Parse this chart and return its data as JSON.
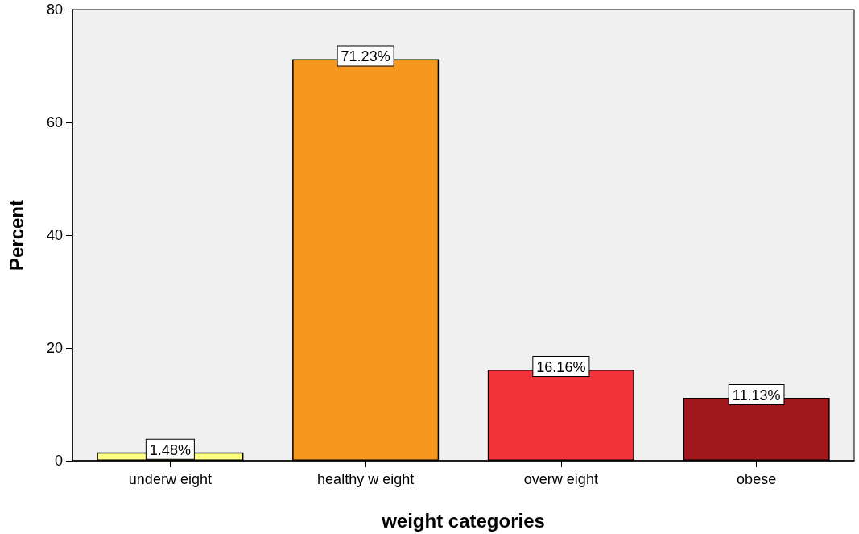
{
  "chart_data": {
    "type": "bar",
    "xlabel": "weight categories",
    "ylabel": "Percent",
    "categories": [
      "underw eight",
      "healthy w eight",
      "overw eight",
      "obese"
    ],
    "values": [
      1.48,
      71.23,
      16.16,
      11.13
    ],
    "colors": [
      "#ffff80",
      "#f7971e",
      "#f2343a",
      "#a0171c"
    ],
    "value_labels": [
      "1.48%",
      "71.23%",
      "16.16%",
      "11.13%"
    ],
    "ylim": [
      0,
      80
    ],
    "yticks": [
      0,
      20,
      40,
      60,
      80
    ]
  }
}
